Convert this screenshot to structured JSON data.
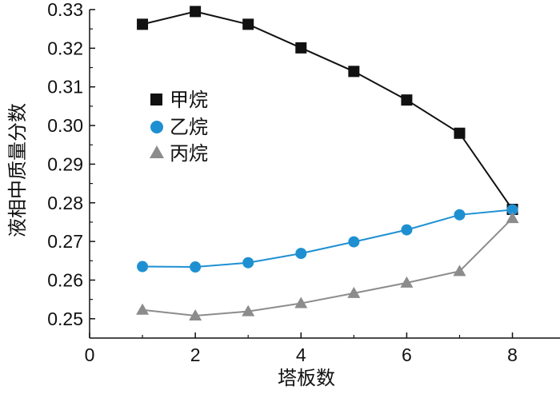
{
  "chart_data": {
    "type": "line",
    "xlabel": "塔板数",
    "ylabel": "液相中质量分数",
    "xlim": [
      0,
      8.9
    ],
    "ylim": [
      0.245,
      0.33
    ],
    "x_ticks": [
      0,
      2,
      4,
      6,
      8
    ],
    "y_ticks": [
      0.25,
      0.26,
      0.27,
      0.28,
      0.29,
      0.3,
      0.31,
      0.32,
      0.33
    ],
    "x_tick_labels": [
      "0",
      "2",
      "4",
      "6",
      "8"
    ],
    "y_tick_labels": [
      "0.25",
      "0.26",
      "0.27",
      "0.28",
      "0.29",
      "0.30",
      "0.31",
      "0.32",
      "0.33"
    ],
    "grid": false,
    "legend_position": "upper-left",
    "x": [
      1,
      2,
      3,
      4,
      5,
      6,
      7,
      8
    ],
    "series": [
      {
        "name": "甲烷",
        "marker": "square",
        "marker_color": "#111111",
        "line_color": "#111111",
        "values": [
          0.3262,
          0.3295,
          0.3262,
          0.3201,
          0.314,
          0.3066,
          0.298,
          0.2783
        ]
      },
      {
        "name": "乙烷",
        "marker": "circle",
        "marker_color": "#1e90d2",
        "line_color": "#1e90d2",
        "values": [
          0.2635,
          0.2634,
          0.2645,
          0.2669,
          0.2699,
          0.273,
          0.2769,
          0.2782
        ]
      },
      {
        "name": "丙烷",
        "marker": "triangle",
        "marker_color": "#8c8c8c",
        "line_color": "#8c8c8c",
        "values": [
          0.2523,
          0.2508,
          0.2519,
          0.254,
          0.2566,
          0.2593,
          0.2623,
          0.276
        ]
      }
    ]
  }
}
